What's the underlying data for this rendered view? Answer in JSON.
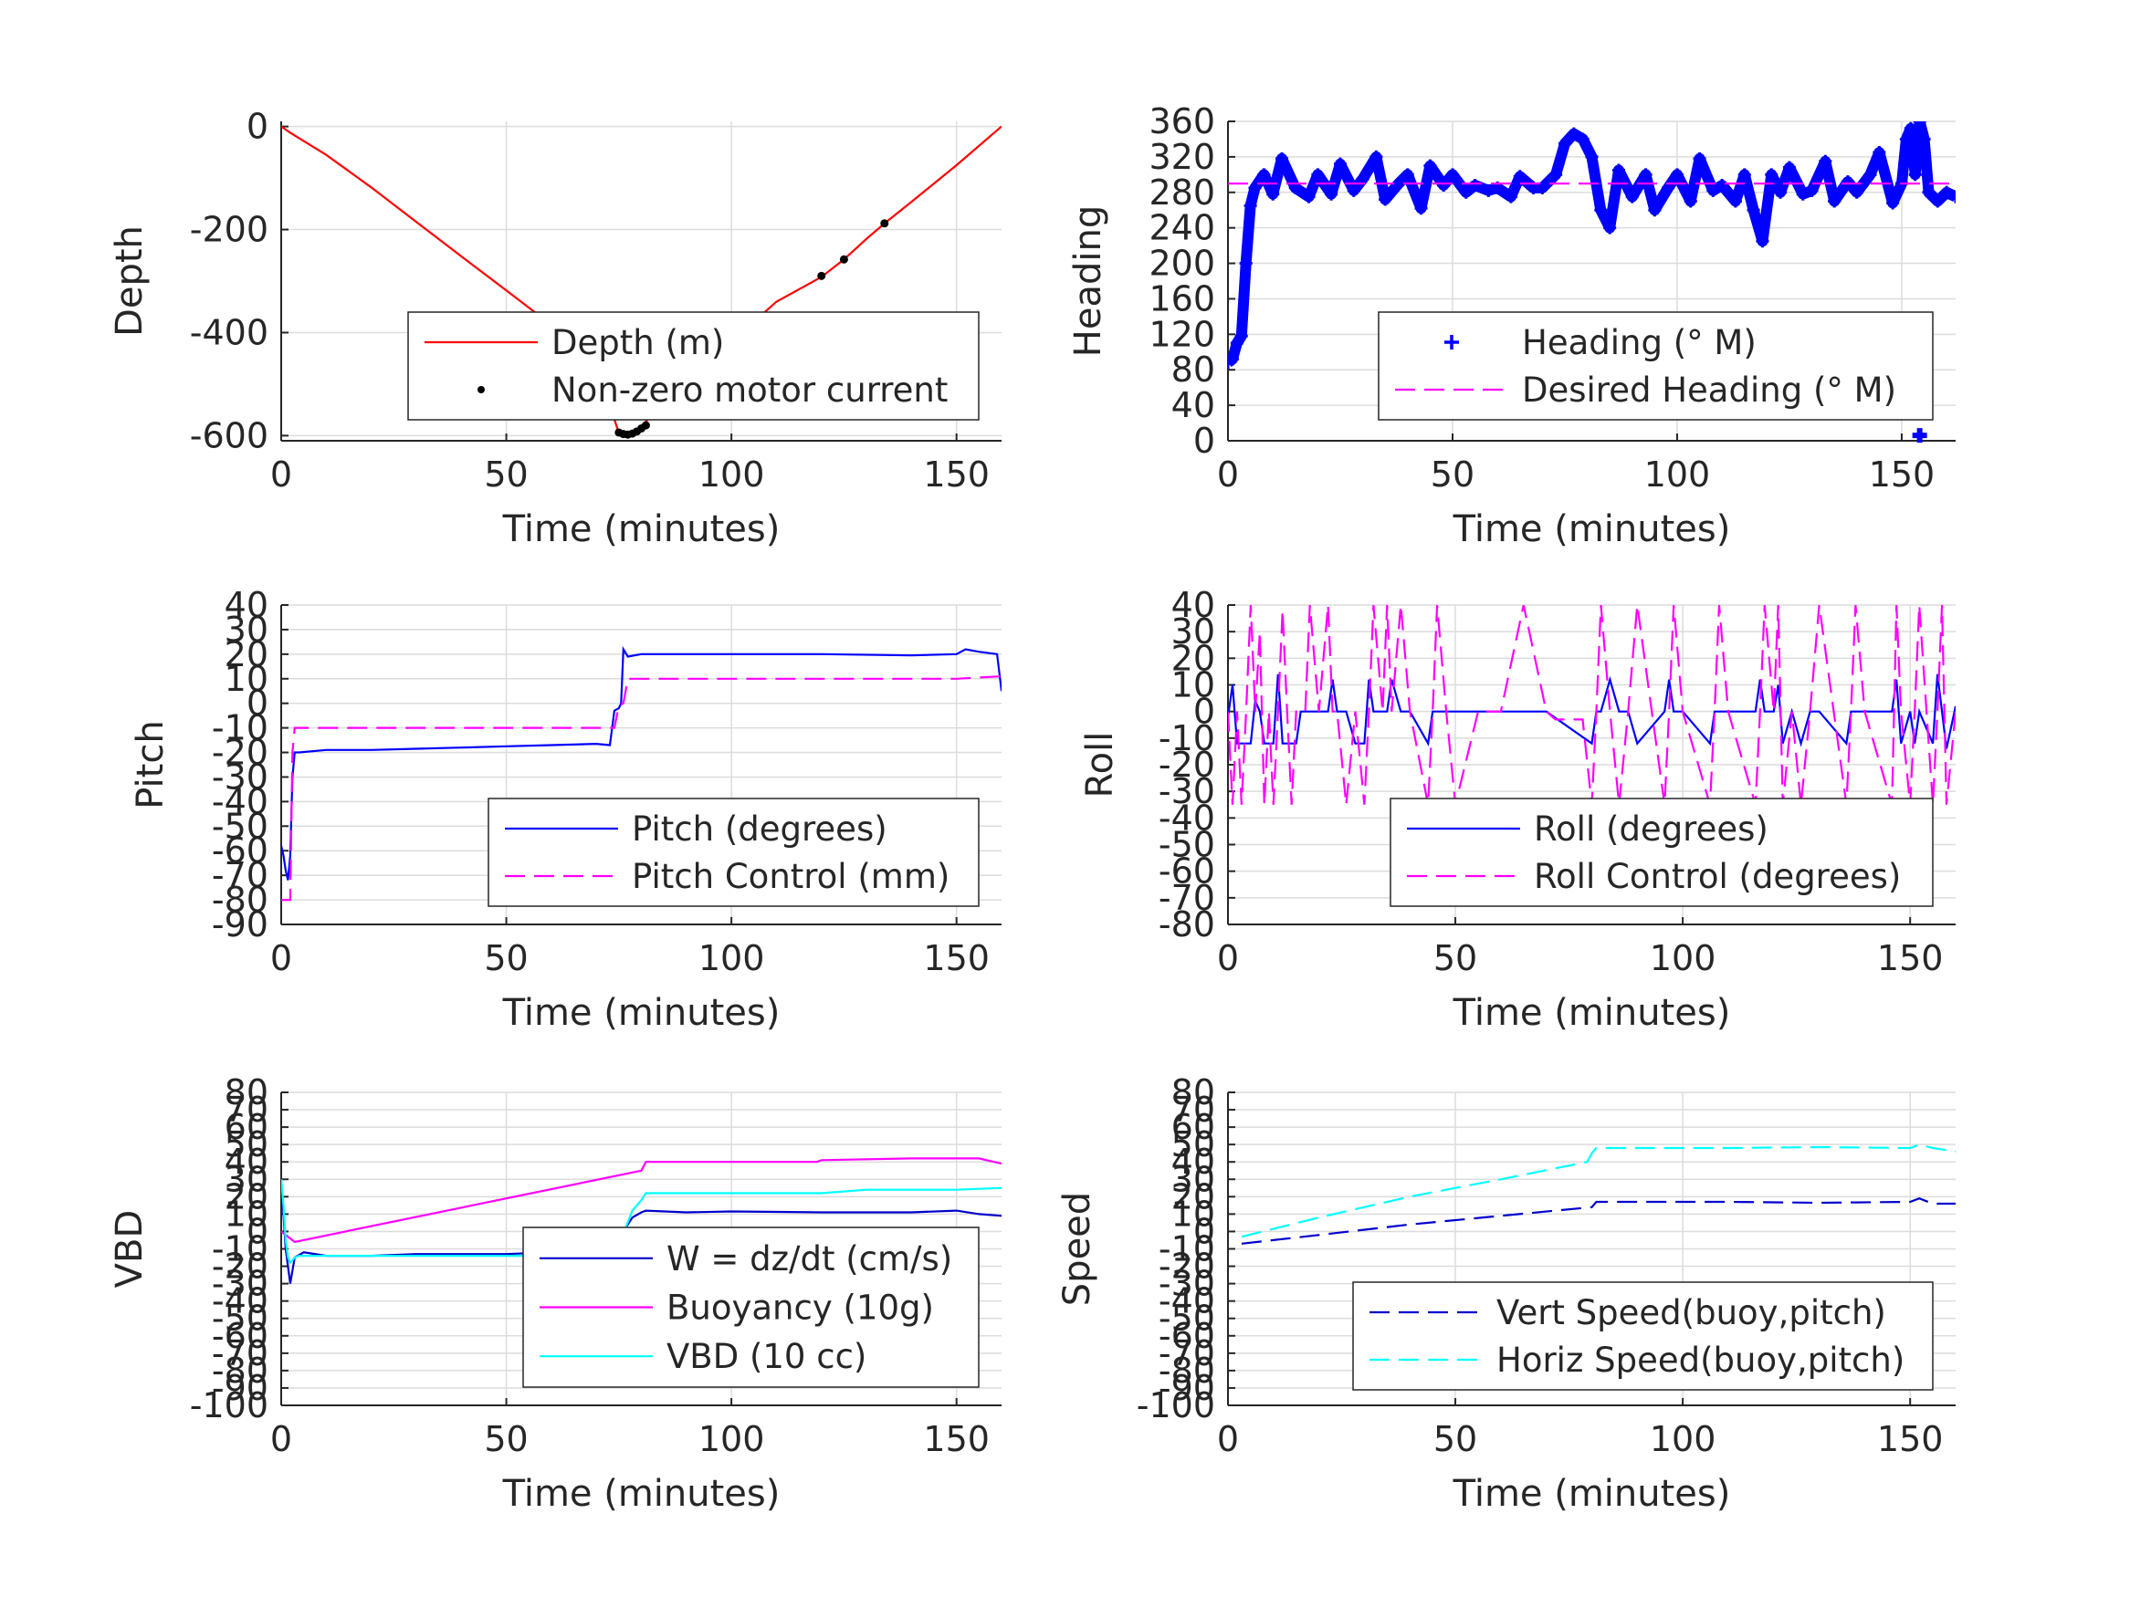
{
  "chart_data": [
    {
      "type": "line",
      "xlabel": "Time (minutes)",
      "ylabel": "Depth",
      "xlim": [
        0,
        160
      ],
      "ylim": [
        -610,
        10
      ],
      "xticks": [
        0,
        50,
        100,
        150
      ],
      "yticks": [
        -600,
        -400,
        -200,
        0
      ],
      "grid": true,
      "legend_position": "bottom-right",
      "series": [
        {
          "name": "Depth (m)",
          "color": "#ff0000",
          "style": "solid",
          "x": [
            0,
            2,
            10,
            20,
            30,
            40,
            50,
            60,
            70,
            75,
            77,
            79,
            85,
            90,
            100,
            110,
            120,
            125,
            130,
            134,
            140,
            150,
            160
          ],
          "y": [
            0,
            -12,
            -55,
            -118,
            -185,
            -252,
            -318,
            -385,
            -460,
            -595,
            -598,
            -590,
            -538,
            -497,
            -418,
            -340,
            -292,
            -258,
            -218,
            -188,
            -146,
            -75,
            0
          ]
        },
        {
          "name": "Non-zero motor current",
          "color": "#000000",
          "style": "dot",
          "x": [
            75,
            76,
            77,
            78,
            79,
            80,
            81,
            120,
            125,
            134
          ],
          "y": [
            -594,
            -597,
            -598,
            -596,
            -592,
            -586,
            -580,
            -290,
            -258,
            -188
          ]
        }
      ]
    },
    {
      "type": "scatter",
      "xlabel": "Time (minutes)",
      "ylabel": "Heading",
      "xlim": [
        0,
        162
      ],
      "ylim": [
        0,
        360
      ],
      "xticks": [
        0,
        50,
        100,
        150
      ],
      "yticks": [
        0,
        40,
        80,
        120,
        160,
        200,
        240,
        280,
        320,
        360
      ],
      "grid": true,
      "legend_position": "bottom-right",
      "series": [
        {
          "name": "Heading (° M)",
          "color": "#0000ff",
          "style": "plus",
          "x": [
            0,
            1,
            2,
            3,
            4,
            5,
            6,
            8,
            10,
            12,
            15,
            18,
            20,
            23,
            25,
            28,
            30,
            33,
            35,
            38,
            40,
            43,
            45,
            48,
            50,
            53,
            55,
            58,
            60,
            63,
            65,
            68,
            70,
            73,
            75,
            77,
            79,
            81,
            83,
            85,
            87,
            90,
            93,
            95,
            98,
            100,
            103,
            105,
            108,
            110,
            113,
            115,
            117,
            119,
            121,
            123,
            125,
            128,
            130,
            133,
            135,
            138,
            140,
            143,
            145,
            148,
            150,
            151,
            152,
            153,
            154,
            155,
            156,
            158,
            160,
            162
          ],
          "y": [
            88,
            92,
            110,
            118,
            200,
            265,
            285,
            300,
            278,
            318,
            285,
            275,
            300,
            278,
            312,
            282,
            295,
            320,
            272,
            290,
            300,
            262,
            310,
            288,
            300,
            280,
            288,
            282,
            285,
            275,
            298,
            285,
            285,
            300,
            335,
            346,
            340,
            320,
            260,
            240,
            305,
            275,
            300,
            260,
            285,
            300,
            270,
            318,
            282,
            288,
            270,
            300,
            260,
            225,
            300,
            280,
            308,
            278,
            282,
            315,
            270,
            292,
            280,
            300,
            325,
            268,
            290,
            340,
            352,
            300,
            360,
            340,
            280,
            270,
            280,
            275
          ]
        },
        {
          "name": "Desired Heading (° M)",
          "color": "#ff00ff",
          "style": "dashed",
          "x": [
            0,
            162
          ],
          "y": [
            290,
            290
          ]
        }
      ],
      "extra_points": [
        {
          "x": 154,
          "y": 6
        }
      ]
    },
    {
      "type": "line",
      "xlabel": "Time (minutes)",
      "ylabel": "Pitch",
      "xlim": [
        0,
        160
      ],
      "ylim": [
        -90,
        40
      ],
      "xticks": [
        0,
        50,
        100,
        150
      ],
      "yticks": [
        -90,
        -80,
        -70,
        -60,
        -50,
        -40,
        -30,
        -20,
        -10,
        0,
        10,
        20,
        30,
        40
      ],
      "grid": true,
      "legend_position": "bottom-right",
      "series": [
        {
          "name": "Pitch (degrees)",
          "color": "#0000ff",
          "style": "solid",
          "x": [
            0,
            0.5,
            1,
            1.5,
            2,
            2.5,
            3,
            4,
            10,
            20,
            30,
            40,
            50,
            60,
            70,
            73,
            74,
            75,
            75.5,
            76,
            77,
            80,
            90,
            100,
            120,
            140,
            150,
            152,
            155,
            159,
            160
          ],
          "y": [
            -58,
            -62,
            -68,
            -72,
            -62,
            -30,
            -20,
            -20,
            -19,
            -19,
            -18.5,
            -18,
            -17.5,
            -17,
            -16.5,
            -17,
            -3,
            -2,
            0,
            22,
            19,
            20,
            20,
            20,
            20,
            19.5,
            20,
            22,
            21,
            20,
            5
          ]
        },
        {
          "name": "Pitch Control (mm)",
          "color": "#ff00ff",
          "style": "dashed",
          "x": [
            0,
            2,
            2.5,
            3,
            10,
            40,
            70,
            74,
            75,
            76,
            77,
            100,
            150,
            160
          ],
          "y": [
            -80,
            -80,
            -20,
            -10,
            -10,
            -10,
            -10,
            -10,
            -1,
            0,
            10,
            10,
            10,
            11
          ]
        }
      ]
    },
    {
      "type": "line",
      "xlabel": "Time (minutes)",
      "ylabel": "Roll",
      "xlim": [
        0,
        160
      ],
      "ylim": [
        -80,
        40
      ],
      "xticks": [
        0,
        50,
        100,
        150
      ],
      "yticks": [
        -80,
        -70,
        -60,
        -50,
        -40,
        -30,
        -20,
        -10,
        0,
        10,
        20,
        30,
        40
      ],
      "grid": true,
      "legend_position": "bottom-right",
      "series": [
        {
          "name": "Roll (degrees)",
          "color": "#0000ff",
          "style": "solid",
          "x": [
            0,
            1,
            2,
            3,
            4,
            5,
            6,
            7,
            8,
            10,
            11,
            12,
            14,
            15,
            16,
            18,
            20,
            22,
            23,
            24,
            26,
            28,
            30,
            31,
            32,
            34,
            35,
            36,
            38,
            40,
            44,
            45,
            46,
            48,
            50,
            60,
            70,
            80,
            81,
            82,
            84,
            86,
            88,
            90,
            96,
            97,
            98,
            100,
            106,
            107,
            108,
            110,
            116,
            117,
            118,
            120,
            121,
            122,
            124,
            126,
            128,
            130,
            136,
            137,
            138,
            140,
            146,
            147,
            148,
            150,
            151,
            152,
            155,
            156,
            157,
            158,
            160
          ],
          "y": [
            -2,
            10,
            -12,
            -12,
            -12,
            -12,
            4,
            0,
            -12,
            -12,
            14,
            -12,
            -12,
            -12,
            0,
            0,
            0,
            0,
            12,
            0,
            0,
            -12,
            -12,
            12,
            0,
            0,
            0,
            12,
            0,
            0,
            -12,
            0,
            0,
            0,
            0,
            0,
            0,
            -12,
            0,
            0,
            12,
            0,
            0,
            -12,
            0,
            12,
            0,
            0,
            -12,
            0,
            0,
            0,
            0,
            12,
            0,
            0,
            10,
            -12,
            0,
            -12,
            0,
            0,
            -12,
            0,
            0,
            0,
            0,
            12,
            -12,
            0,
            -12,
            0,
            -12,
            14,
            0,
            -14,
            2
          ]
        },
        {
          "name": "Roll Control (degrees)",
          "color": "#ff00ff",
          "style": "dashed",
          "x": [
            0,
            1,
            2,
            3,
            4,
            5,
            6,
            7,
            8,
            9,
            10,
            11,
            12,
            13,
            14,
            15,
            16,
            17,
            18,
            20,
            22,
            23,
            24,
            26,
            28,
            30,
            31,
            32,
            34,
            35,
            36,
            38,
            40,
            44,
            45,
            46,
            48,
            50,
            55,
            60,
            65,
            70,
            72,
            78,
            80,
            81,
            82,
            84,
            86,
            88,
            90,
            96,
            97,
            98,
            100,
            106,
            107,
            108,
            110,
            116,
            117,
            118,
            120,
            121,
            122,
            124,
            126,
            128,
            130,
            136,
            137,
            138,
            140,
            146,
            147,
            148,
            150,
            151,
            152,
            155,
            156,
            157,
            158,
            160
          ],
          "y": [
            0,
            -35,
            0,
            -35,
            0,
            40,
            0,
            30,
            -35,
            0,
            -35,
            0,
            38,
            0,
            -35,
            0,
            0,
            0,
            40,
            0,
            40,
            0,
            0,
            -35,
            0,
            -35,
            0,
            40,
            0,
            40,
            0,
            40,
            0,
            -35,
            0,
            40,
            0,
            -35,
            0,
            0,
            40,
            0,
            -3,
            -3,
            -35,
            0,
            40,
            0,
            -35,
            0,
            40,
            -35,
            0,
            40,
            0,
            -35,
            0,
            40,
            0,
            -35,
            0,
            40,
            0,
            40,
            -35,
            0,
            -35,
            0,
            40,
            -35,
            0,
            40,
            0,
            -35,
            40,
            0,
            -35,
            0,
            40,
            -35,
            0,
            40,
            -35,
            0
          ]
        }
      ]
    },
    {
      "type": "line",
      "xlabel": "Time (minutes)",
      "ylabel": "VBD",
      "xlim": [
        0,
        160
      ],
      "ylim": [
        -100,
        80
      ],
      "xticks": [
        0,
        50,
        100,
        150
      ],
      "yticks": [
        -100,
        -90,
        -80,
        -70,
        -60,
        -50,
        -40,
        -30,
        -20,
        -10,
        0,
        10,
        20,
        30,
        40,
        50,
        60,
        70,
        80
      ],
      "grid": true,
      "legend_position": "bottom-right",
      "series": [
        {
          "name": "W = dz/dt (cm/s)",
          "color": "#0000cc",
          "style": "solid",
          "x": [
            0,
            0.5,
            1,
            1.5,
            2,
            3,
            5,
            10,
            20,
            30,
            50,
            60,
            73,
            74,
            76,
            78,
            80,
            81,
            90,
            100,
            120,
            140,
            150,
            155,
            160
          ],
          "y": [
            25,
            10,
            -10,
            -20,
            -30,
            -15,
            -12,
            -14,
            -14,
            -13,
            -13,
            -12,
            -12,
            -10,
            0,
            8,
            11,
            12,
            11,
            11.5,
            11,
            11,
            12,
            10,
            9
          ]
        },
        {
          "name": "Buoyancy (10g)",
          "color": "#ff00ff",
          "style": "solid",
          "x": [
            0,
            1,
            2,
            3,
            80,
            81,
            100,
            110,
            119,
            120,
            140,
            150,
            155,
            160
          ],
          "y": [
            0,
            -2,
            -4,
            -6,
            35,
            40,
            40,
            40,
            40,
            41,
            42,
            42,
            42,
            39
          ]
        },
        {
          "name": "VBD (10 cc)",
          "color": "#00ffff",
          "style": "solid",
          "x": [
            0,
            0.5,
            1,
            1.5,
            2,
            3,
            4,
            10,
            20,
            40,
            60,
            73,
            75,
            78,
            80,
            81,
            90,
            100,
            120,
            130,
            150,
            160
          ],
          "y": [
            30,
            15,
            -5,
            -15,
            -18,
            -15,
            -14,
            -14,
            -14,
            -14,
            -14,
            -14,
            -8,
            12,
            18,
            22,
            22,
            22,
            22,
            24,
            24,
            25
          ]
        }
      ]
    },
    {
      "type": "line",
      "xlabel": "Time (minutes)",
      "ylabel": "Speed",
      "xlim": [
        0,
        160
      ],
      "ylim": [
        -100,
        80
      ],
      "xticks": [
        0,
        50,
        100,
        150
      ],
      "yticks": [
        -100,
        -90,
        -80,
        -70,
        -60,
        -50,
        -40,
        -30,
        -20,
        -10,
        0,
        10,
        20,
        30,
        40,
        50,
        60,
        70,
        80
      ],
      "grid": true,
      "legend_position": "bottom-right",
      "series": [
        {
          "name": "Vert Speed(buoy,pitch)",
          "color": "#0000cc",
          "style": "dashed",
          "x": [
            3,
            20,
            40,
            60,
            80,
            81,
            90,
            110,
            130,
            150,
            152,
            155,
            160
          ],
          "y": [
            -7,
            -2,
            4,
            9,
            14,
            17,
            17,
            17,
            16.5,
            17,
            19,
            16,
            16
          ]
        },
        {
          "name": "Horiz Speed(buoy,pitch)",
          "color": "#00ffff",
          "style": "dashed",
          "x": [
            3,
            20,
            40,
            60,
            79,
            80,
            81,
            90,
            110,
            130,
            150,
            152,
            155,
            160
          ],
          "y": [
            -3,
            8,
            20,
            30,
            40,
            45,
            48,
            48,
            48,
            48.5,
            48,
            50,
            48,
            46
          ]
        }
      ]
    }
  ]
}
